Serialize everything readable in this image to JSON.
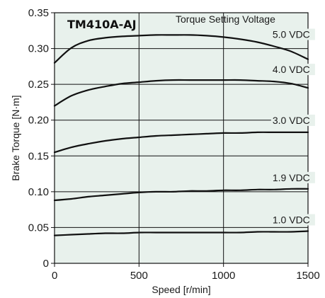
{
  "chart_data": {
    "type": "line",
    "title": "TM410A-AJ",
    "legend_title": "Torque Setting Voltage",
    "xlabel": "Speed [r/min]",
    "ylabel": "Brake Torque [N·m]",
    "xlim": [
      0,
      1500
    ],
    "ylim": [
      0,
      0.35
    ],
    "x_ticks": [
      0,
      500,
      1000,
      1500
    ],
    "x_tick_labels": [
      "0",
      "500",
      "1000",
      "1500"
    ],
    "y_ticks": [
      0,
      0.05,
      0.1,
      0.15,
      0.2,
      0.25,
      0.3,
      0.35
    ],
    "y_tick_labels": [
      "0",
      "0.05",
      "0.10",
      "0.15",
      "0.20",
      "0.25",
      "0.30",
      "0.35"
    ],
    "grid": true,
    "background_color": "#e8f1ec",
    "line_color": "#111111",
    "x": [
      0,
      100,
      200,
      300,
      400,
      500,
      600,
      700,
      800,
      900,
      1000,
      1100,
      1200,
      1300,
      1400,
      1500
    ],
    "series": [
      {
        "name": "5.0 VDC",
        "values": [
          0.28,
          0.301,
          0.311,
          0.315,
          0.317,
          0.318,
          0.319,
          0.319,
          0.319,
          0.318,
          0.316,
          0.313,
          0.309,
          0.303,
          0.296,
          0.285
        ]
      },
      {
        "name": "4.0 VDC",
        "values": [
          0.22,
          0.234,
          0.242,
          0.247,
          0.251,
          0.253,
          0.255,
          0.256,
          0.256,
          0.256,
          0.256,
          0.256,
          0.255,
          0.254,
          0.251,
          0.245
        ]
      },
      {
        "name": "3.0 VDC",
        "values": [
          0.155,
          0.162,
          0.167,
          0.171,
          0.174,
          0.176,
          0.178,
          0.179,
          0.18,
          0.181,
          0.182,
          0.182,
          0.183,
          0.183,
          0.183,
          0.183
        ]
      },
      {
        "name": "1.9 VDC",
        "values": [
          0.088,
          0.09,
          0.093,
          0.095,
          0.097,
          0.099,
          0.1,
          0.1,
          0.101,
          0.101,
          0.102,
          0.102,
          0.103,
          0.103,
          0.104,
          0.104
        ]
      },
      {
        "name": "1.0 VDC",
        "values": [
          0.039,
          0.04,
          0.041,
          0.042,
          0.042,
          0.043,
          0.043,
          0.043,
          0.043,
          0.043,
          0.043,
          0.043,
          0.044,
          0.044,
          0.044,
          0.045
        ]
      }
    ]
  }
}
